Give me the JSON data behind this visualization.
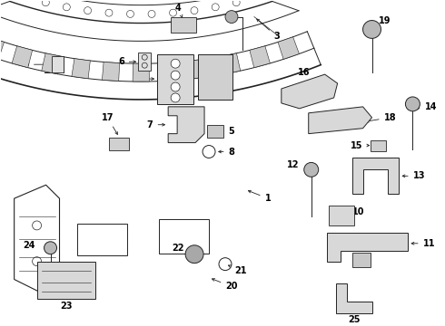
{
  "bg_color": "#ffffff",
  "lc": "#222222",
  "lw": 0.8,
  "fig_w": 4.9,
  "fig_h": 3.6,
  "dpi": 100
}
